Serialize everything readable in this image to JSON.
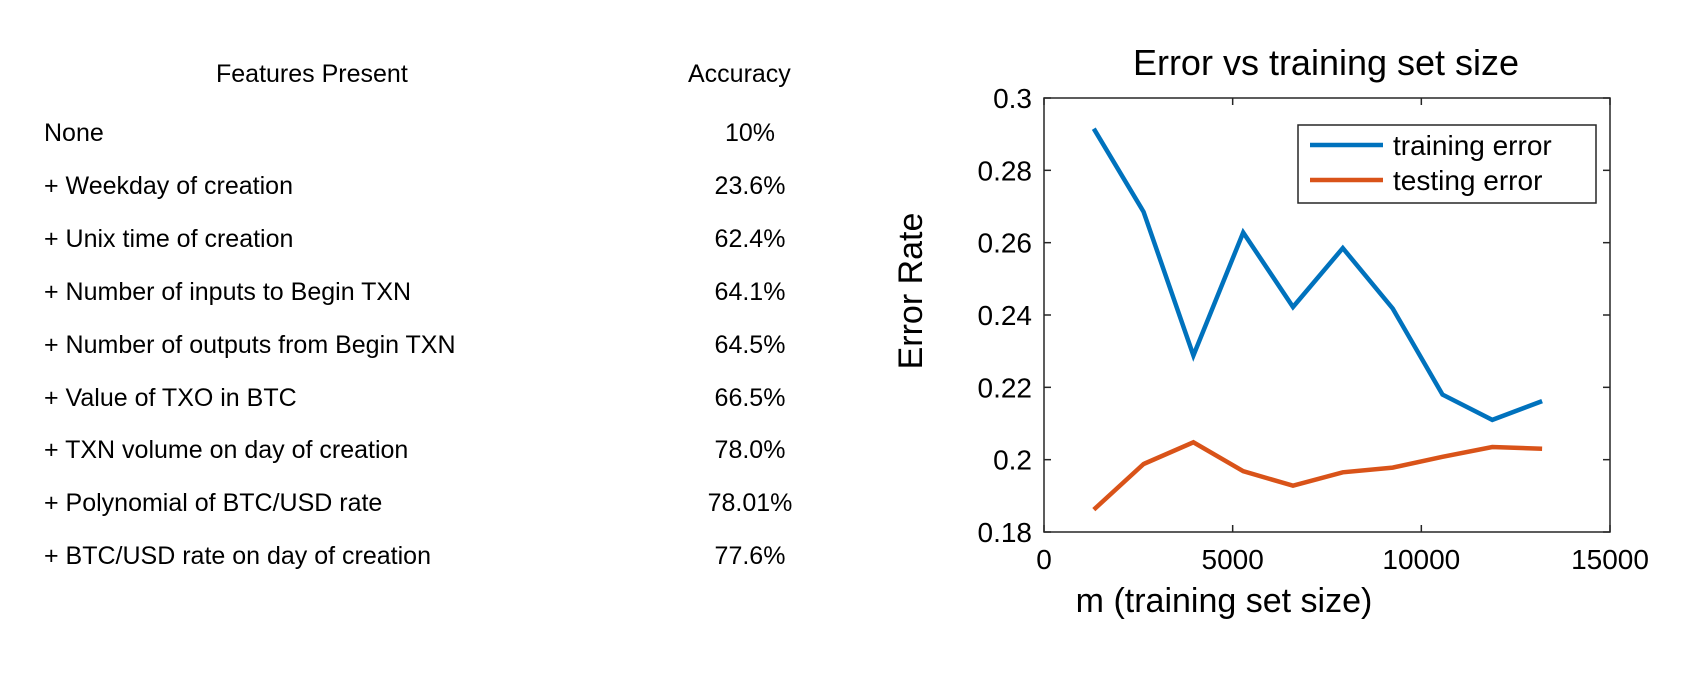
{
  "table": {
    "headers": {
      "features": "Features Present",
      "accuracy": "Accuracy"
    },
    "rows": [
      {
        "feature": "None",
        "accuracy": "10%"
      },
      {
        "feature": "+ Weekday of creation",
        "accuracy": "23.6%"
      },
      {
        "feature": "+ Unix time of creation",
        "accuracy": "62.4%"
      },
      {
        "feature": "+ Number of inputs to Begin TXN",
        "accuracy": "64.1%"
      },
      {
        "feature": "+ Number of outputs from Begin TXN",
        "accuracy": "64.5%"
      },
      {
        "feature": "+ Value of TXO in BTC",
        "accuracy": "66.5%"
      },
      {
        "feature": "+ TXN volume on day of creation",
        "accuracy": "78.0%"
      },
      {
        "feature": "+ Polynomial of BTC/USD rate",
        "accuracy": "78.01%"
      },
      {
        "feature": "+ BTC/USD rate on day of creation",
        "accuracy": "77.6%"
      }
    ]
  },
  "chart_data": {
    "type": "line",
    "title": "Error vs training set size",
    "xlabel": "m (training set size)",
    "ylabel": "Error Rate",
    "xlim": [
      0,
      15000
    ],
    "ylim": [
      0.18,
      0.3
    ],
    "xticks": [
      0,
      5000,
      10000,
      15000
    ],
    "yticks": [
      0.18,
      0.2,
      0.22,
      0.24,
      0.26,
      0.28,
      0.3
    ],
    "xtick_labels": [
      "0",
      "5000",
      "10000",
      "15000"
    ],
    "ytick_labels": [
      "0.18",
      "0.2",
      "0.22",
      "0.24",
      "0.26",
      "0.28",
      "0.3"
    ],
    "legend_position": "top-right",
    "grid": false,
    "x": [
      1320,
      2640,
      3960,
      5280,
      6600,
      7920,
      9240,
      10560,
      11880,
      13200
    ],
    "series": [
      {
        "name": "training error",
        "color": "#0072BD",
        "values": [
          0.2915,
          0.2685,
          0.2288,
          0.2628,
          0.2422,
          0.2585,
          0.2418,
          0.218,
          0.211,
          0.2162
        ]
      },
      {
        "name": "testing error",
        "color": "#D95319",
        "values": [
          0.1862,
          0.1988,
          0.2048,
          0.1968,
          0.1928,
          0.1965,
          0.1978,
          0.2008,
          0.2035,
          0.203
        ]
      }
    ]
  }
}
